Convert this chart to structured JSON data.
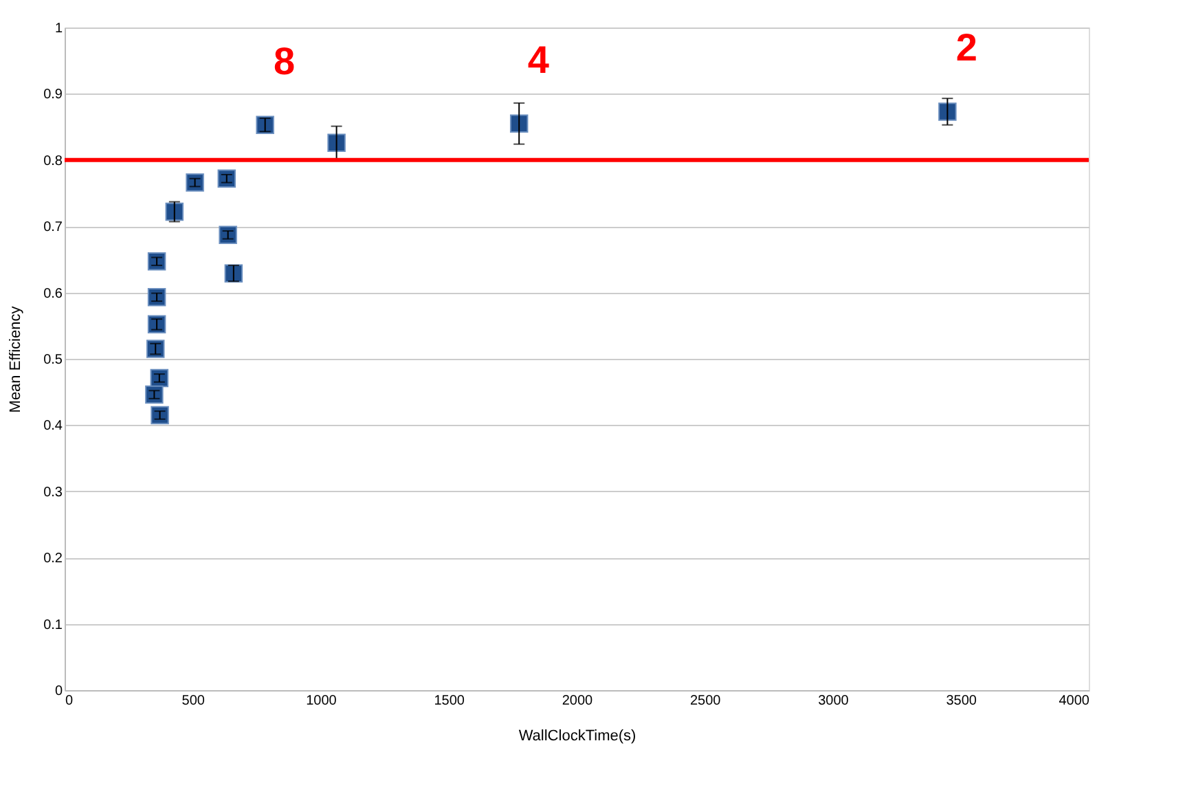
{
  "chart_data": {
    "type": "scatter",
    "xlabel": "WallClockTime(s)",
    "ylabel": "Mean Efficiency",
    "x": [
      360,
      360,
      360,
      355,
      370,
      350,
      372,
      429,
      509,
      633,
      638,
      660,
      783,
      1062,
      1775,
      3448
    ],
    "series": [
      {
        "color": "#1f4e8c",
        "values": [
          0.647,
          0.593,
          0.552,
          0.515,
          0.471,
          0.446,
          0.415,
          0.722,
          0.766,
          0.772,
          0.687,
          0.629,
          0.853,
          0.826,
          0.855,
          0.873
        ],
        "errors": [
          0.006,
          0.006,
          0.008,
          0.008,
          0.006,
          0.006,
          0.006,
          0.015,
          0.006,
          0.006,
          0.006,
          0.012,
          0.01,
          0.025,
          0.031,
          0.02
        ]
      }
    ],
    "marker": "square",
    "grid": "y",
    "xlim": [
      0,
      4000
    ],
    "xticks": [
      0,
      500,
      1000,
      1500,
      2000,
      2500,
      3000,
      3500,
      4000
    ],
    "ylim": [
      0,
      1
    ],
    "yticks": [
      0,
      0.1,
      0.2,
      0.3,
      0.4,
      0.5,
      0.6,
      0.7,
      0.8,
      0.9,
      1
    ],
    "ref_lines": [
      {
        "axis": "y",
        "value": 0.8,
        "color": "#ff0000"
      }
    ],
    "annotations": [
      {
        "text": "8",
        "x": 783,
        "y": 0.853
      },
      {
        "text": "4",
        "x": 1775,
        "y": 0.855
      },
      {
        "text": "2",
        "x": 3448,
        "y": 0.873
      }
    ]
  }
}
